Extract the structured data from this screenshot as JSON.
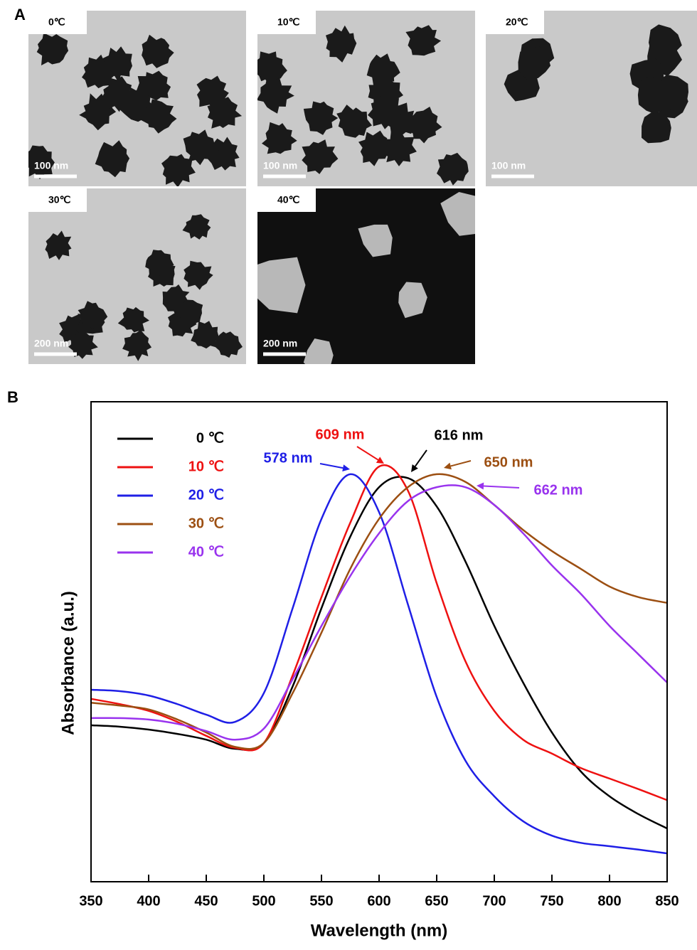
{
  "panel_a": {
    "label": "A",
    "images": [
      {
        "label": "0℃",
        "scale": "100 nm"
      },
      {
        "label": "10℃",
        "scale": "100 nm"
      },
      {
        "label": "20℃",
        "scale": "100 nm"
      },
      {
        "label": "30℃",
        "scale": "200 nm"
      },
      {
        "label": "40℃",
        "scale": "200 nm"
      }
    ]
  },
  "panel_b": {
    "label": "B"
  },
  "chart_data": {
    "type": "line",
    "x_label": "Wavelength (nm)",
    "y_label": "Absorbance (a.u.)",
    "x": [
      350,
      375,
      400,
      425,
      450,
      475,
      500,
      525,
      550,
      575,
      600,
      625,
      650,
      675,
      700,
      725,
      750,
      775,
      800,
      825,
      850
    ],
    "xlim": [
      350,
      850
    ],
    "xticks": [
      350,
      400,
      450,
      500,
      550,
      600,
      650,
      700,
      750,
      800,
      850
    ],
    "ylim": [
      0,
      100
    ],
    "legend": "upper left",
    "series": [
      {
        "name": "0 ℃",
        "color": "#000000",
        "values": [
          32.6,
          32.3,
          31.7,
          30.8,
          29.6,
          27.7,
          28.9,
          40.7,
          57.0,
          71.9,
          82.2,
          84.1,
          78.2,
          66.7,
          53.3,
          41.5,
          31.1,
          23.0,
          17.8,
          14.1,
          11.1
        ]
      },
      {
        "name": "10 ℃",
        "color": "#ee1111",
        "values": [
          38.1,
          37.0,
          35.6,
          33.3,
          30.4,
          27.9,
          28.9,
          43.0,
          59.3,
          74.8,
          86.5,
          81.5,
          62.2,
          45.9,
          35.6,
          29.6,
          26.7,
          23.7,
          21.5,
          19.3,
          17.0
        ]
      },
      {
        "name": "20 ℃",
        "color": "#1f1fe6",
        "values": [
          40.0,
          39.7,
          38.8,
          37.0,
          34.8,
          33.3,
          39.3,
          57.0,
          75.6,
          84.9,
          77.0,
          57.8,
          38.5,
          25.2,
          17.8,
          12.6,
          9.6,
          8.1,
          7.4,
          6.7,
          5.9
        ]
      },
      {
        "name": "30 ℃",
        "color": "#9c4f12",
        "values": [
          37.3,
          36.7,
          35.9,
          33.8,
          31.1,
          28.1,
          28.9,
          39.3,
          51.9,
          65.2,
          75.6,
          82.2,
          84.9,
          83.3,
          78.5,
          73.3,
          68.9,
          65.2,
          61.5,
          59.3,
          58.1
        ]
      },
      {
        "name": "40 ℃",
        "color": "#9933ee",
        "values": [
          34.1,
          34.1,
          33.8,
          32.9,
          31.4,
          29.6,
          31.9,
          42.2,
          53.3,
          63.7,
          72.6,
          79.3,
          82.2,
          82.2,
          78.5,
          72.6,
          65.9,
          60.0,
          53.3,
          47.4,
          41.5
        ]
      }
    ],
    "annotations": [
      {
        "text": "578 nm",
        "color": "#1f1fe6"
      },
      {
        "text": "609 nm",
        "color": "#ee1111"
      },
      {
        "text": "616 nm",
        "color": "#000000"
      },
      {
        "text": "650 nm",
        "color": "#9c4f12"
      },
      {
        "text": "662 nm",
        "color": "#9933ee"
      }
    ]
  }
}
